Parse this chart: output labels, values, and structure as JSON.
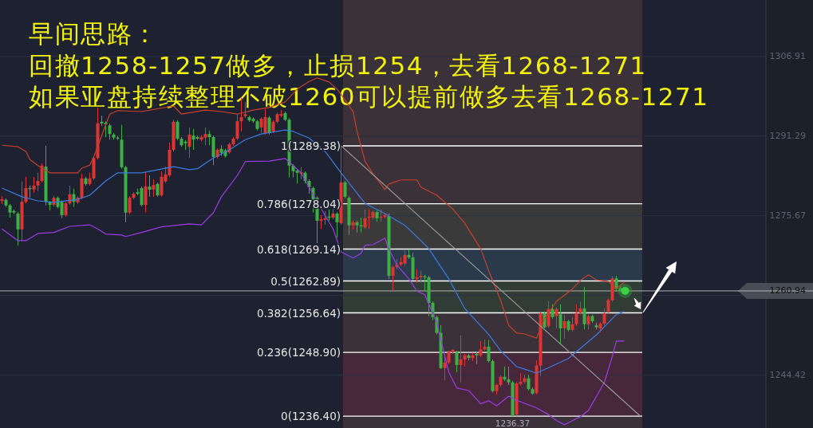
{
  "chart_data": {
    "type": "candlestick",
    "title": "早间思路：",
    "annotations": [
      "回撤1258-1257做多，止损1254，去看1268-1271",
      "如果亚盘持续整理不破1260可以提前做多去看1268-1271",
      {
        "text": "1236.37",
        "y": 1236.37
      }
    ],
    "categories": [
      null,
      null,
      null,
      null,
      null,
      null,
      null,
      null,
      null,
      null,
      null,
      null,
      null,
      null,
      null,
      null,
      null,
      null,
      null,
      null,
      null,
      null,
      null,
      null,
      null,
      null,
      null,
      null,
      null,
      null,
      null,
      null,
      null,
      null,
      null,
      null,
      null,
      null,
      null,
      null,
      null,
      null,
      null,
      null,
      null,
      null,
      null,
      null,
      null,
      null,
      null,
      null,
      null,
      null,
      null,
      null,
      null,
      null,
      null,
      null,
      null,
      null,
      null,
      null,
      null,
      null,
      null,
      null,
      null,
      null,
      null,
      null,
      null,
      null,
      null,
      null,
      null,
      null,
      null,
      null,
      null,
      null,
      null,
      null,
      null,
      null,
      null,
      null,
      null,
      null,
      null,
      null,
      null,
      null,
      null,
      null,
      null,
      null,
      null,
      null,
      null,
      null,
      null,
      null,
      null,
      null,
      null,
      null,
      null,
      null,
      null,
      null,
      null,
      null,
      null,
      null,
      null,
      null,
      null,
      null,
      null,
      null,
      null,
      null,
      null,
      null,
      null,
      null,
      null,
      null,
      null,
      null,
      null,
      null,
      null,
      null,
      null,
      null,
      null,
      null,
      null,
      null,
      null,
      null,
      null,
      null,
      null,
      null,
      null,
      null,
      null,
      null,
      null,
      null,
      null,
      null,
      null,
      null,
      null,
      null,
      null,
      null,
      null,
      null,
      null,
      null,
      null,
      null,
      null,
      null,
      null,
      null,
      null,
      null,
      null,
      null,
      null,
      null,
      null,
      null,
      null,
      null,
      null,
      null,
      null,
      null,
      null,
      null,
      null,
      null,
      null,
      null
    ],
    "ohlc": [
      [
        1278.6,
        1279.5,
        1278.0,
        1278.9
      ],
      [
        1278.8,
        1279.1,
        1277.4,
        1277.7
      ],
      [
        1277.7,
        1278.0,
        1275.3,
        1276.3
      ],
      [
        1276.6,
        1276.9,
        1276.0,
        1276.3
      ],
      [
        1276.1,
        1276.4,
        1269.8,
        1273.0
      ],
      [
        1273.0,
        1282.4,
        1270.8,
        1278.4
      ],
      [
        1278.4,
        1283.3,
        1278.1,
        1281.1
      ],
      [
        1281.1,
        1281.6,
        1279.2,
        1280.9
      ],
      [
        1280.8,
        1283.3,
        1280.2,
        1281.6
      ],
      [
        1281.6,
        1284.1,
        1280.5,
        1282.5
      ],
      [
        1282.5,
        1286.0,
        1282.2,
        1285.5
      ],
      [
        1285.3,
        1289.4,
        1277.7,
        1278.4
      ],
      [
        1278.3,
        1278.6,
        1276.7,
        1277.8
      ],
      [
        1277.8,
        1279.6,
        1277.5,
        1279.2
      ],
      [
        1279.2,
        1279.5,
        1277.1,
        1277.4
      ],
      [
        1278.4,
        1278.7,
        1275.2,
        1275.8
      ],
      [
        1275.8,
        1278.4,
        1275.5,
        1278.1
      ],
      [
        1278.1,
        1281.6,
        1277.8,
        1279.9
      ],
      [
        1279.9,
        1281.0,
        1277.4,
        1278.4
      ],
      [
        1278.3,
        1279.5,
        1278.0,
        1279.2
      ],
      [
        1279.2,
        1283.9,
        1278.9,
        1283.0
      ],
      [
        1283.0,
        1283.3,
        1281.6,
        1281.9
      ],
      [
        1281.9,
        1284.1,
        1281.6,
        1283.0
      ],
      [
        1283.0,
        1287.3,
        1282.7,
        1287.0
      ],
      [
        1287.0,
        1296.9,
        1286.7,
        1293.8
      ],
      [
        1294.1,
        1295.3,
        1293.3,
        1293.8
      ],
      [
        1293.9,
        1294.2,
        1291.1,
        1293.6
      ],
      [
        1293.4,
        1293.7,
        1290.6,
        1291.7
      ],
      [
        1291.6,
        1291.9,
        1290.6,
        1291.0
      ],
      [
        1291.0,
        1291.3,
        1290.5,
        1290.8
      ],
      [
        1290.6,
        1293.5,
        1284.9,
        1285.2
      ],
      [
        1285.2,
        1285.5,
        1274.4,
        1276.3
      ],
      [
        1276.3,
        1279.5,
        1276.0,
        1279.2
      ],
      [
        1279.2,
        1280.3,
        1278.9,
        1280.0
      ],
      [
        1280.3,
        1281.0,
        1279.7,
        1280.0
      ],
      [
        1281.1,
        1281.4,
        1277.5,
        1277.8
      ],
      [
        1277.8,
        1284.2,
        1276.3,
        1281.4
      ],
      [
        1281.4,
        1283.6,
        1279.4,
        1280.8
      ],
      [
        1280.8,
        1282.8,
        1279.4,
        1281.7
      ],
      [
        1281.9,
        1282.2,
        1279.4,
        1279.7
      ],
      [
        1279.7,
        1284.4,
        1279.4,
        1283.3
      ],
      [
        1282.4,
        1285.3,
        1282.1,
        1283.8
      ],
      [
        1283.6,
        1290.0,
        1283.3,
        1288.6
      ],
      [
        1288.6,
        1294.5,
        1288.3,
        1294.1
      ],
      [
        1294.1,
        1294.4,
        1290.5,
        1290.8
      ],
      [
        1290.8,
        1291.1,
        1289.2,
        1289.5
      ],
      [
        1290.2,
        1290.5,
        1288.6,
        1289.9
      ],
      [
        1289.2,
        1293.0,
        1287.0,
        1291.6
      ],
      [
        1291.4,
        1292.7,
        1288.6,
        1290.6
      ],
      [
        1291.1,
        1291.4,
        1290.5,
        1290.8
      ],
      [
        1290.6,
        1291.4,
        1290.3,
        1291.1
      ],
      [
        1291.0,
        1293.0,
        1289.5,
        1291.7
      ],
      [
        1291.7,
        1292.4,
        1289.5,
        1291.1
      ],
      [
        1291.1,
        1291.4,
        1285.6,
        1287.2
      ],
      [
        1287.2,
        1288.9,
        1286.9,
        1288.6
      ],
      [
        1288.8,
        1289.5,
        1287.4,
        1288.0
      ],
      [
        1288.5,
        1288.8,
        1287.1,
        1287.4
      ],
      [
        1288.1,
        1290.0,
        1287.8,
        1289.7
      ],
      [
        1289.7,
        1291.1,
        1289.4,
        1290.8
      ],
      [
        1290.8,
        1295.6,
        1290.5,
        1294.2
      ],
      [
        1294.2,
        1298.8,
        1292.2,
        1295.0
      ],
      [
        1295.2,
        1298.0,
        1294.9,
        1295.6
      ],
      [
        1295.0,
        1295.3,
        1294.1,
        1294.4
      ],
      [
        1294.7,
        1295.0,
        1293.9,
        1294.2
      ],
      [
        1294.2,
        1294.5,
        1292.4,
        1292.7
      ],
      [
        1293.0,
        1295.0,
        1291.9,
        1294.7
      ],
      [
        1291.9,
        1296.6,
        1291.6,
        1295.0
      ],
      [
        1294.9,
        1295.2,
        1291.6,
        1291.9
      ],
      [
        1292.2,
        1294.4,
        1291.9,
        1294.1
      ],
      [
        1294.1,
        1295.9,
        1293.8,
        1295.6
      ],
      [
        1295.3,
        1296.4,
        1295.0,
        1295.6
      ],
      [
        1295.8,
        1296.1,
        1294.2,
        1294.5
      ],
      [
        1294.5,
        1294.8,
        1283.2,
        1285.5
      ],
      [
        1285.5,
        1285.8,
        1283.2,
        1284.4
      ],
      [
        1284.5,
        1284.8,
        1282.0,
        1284.1
      ],
      [
        1283.9,
        1285.2,
        1282.8,
        1284.2
      ],
      [
        1284.1,
        1284.4,
        1282.0,
        1282.5
      ],
      [
        1282.5,
        1282.8,
        1280.0,
        1281.3
      ],
      [
        1281.1,
        1281.4,
        1276.3,
        1278.9
      ],
      [
        1279.2,
        1279.5,
        1270.3,
        1274.7
      ],
      [
        1274.7,
        1275.8,
        1273.1,
        1275.0
      ],
      [
        1274.9,
        1276.6,
        1273.9,
        1275.2
      ],
      [
        1275.5,
        1276.9,
        1274.7,
        1275.3
      ],
      [
        1275.3,
        1277.0,
        1275.0,
        1276.1
      ],
      [
        1276.1,
        1276.4,
        1271.4,
        1274.4
      ],
      [
        1274.2,
        1289.4,
        1273.9,
        1282.2
      ],
      [
        1282.2,
        1282.5,
        1279.1,
        1279.4
      ],
      [
        1279.2,
        1279.5,
        1271.9,
        1273.8
      ],
      [
        1273.8,
        1274.7,
        1273.0,
        1274.4
      ],
      [
        1274.4,
        1274.7,
        1272.4,
        1273.8
      ],
      [
        1273.8,
        1275.3,
        1272.4,
        1273.6
      ],
      [
        1273.4,
        1276.9,
        1273.1,
        1275.2
      ],
      [
        1275.3,
        1276.9,
        1273.1,
        1275.5
      ],
      [
        1275.3,
        1276.7,
        1275.0,
        1276.4
      ],
      [
        1276.4,
        1276.7,
        1274.5,
        1275.2
      ],
      [
        1275.3,
        1276.9,
        1274.5,
        1275.5
      ],
      [
        1275.5,
        1276.1,
        1275.2,
        1275.8
      ],
      [
        1275.6,
        1276.1,
        1263.3,
        1263.9
      ],
      [
        1263.9,
        1265.9,
        1261.0,
        1265.6
      ],
      [
        1265.6,
        1267.2,
        1265.2,
        1266.1
      ],
      [
        1266.1,
        1267.5,
        1265.8,
        1266.6
      ],
      [
        1266.3,
        1269.1,
        1265.9,
        1268.0
      ],
      [
        1268.0,
        1269.1,
        1267.2,
        1267.5
      ],
      [
        1267.5,
        1268.4,
        1263.0,
        1263.3
      ],
      [
        1263.3,
        1265.2,
        1262.5,
        1263.6
      ],
      [
        1263.6,
        1264.9,
        1262.5,
        1263.9
      ],
      [
        1263.8,
        1264.1,
        1261.0,
        1263.6
      ],
      [
        1263.6,
        1263.9,
        1256.0,
        1258.6
      ],
      [
        1258.6,
        1258.9,
        1255.2,
        1255.8
      ],
      [
        1255.8,
        1256.1,
        1252.4,
        1252.7
      ],
      [
        1252.7,
        1254.2,
        1245.6,
        1245.8
      ],
      [
        1245.8,
        1248.0,
        1243.4,
        1246.9
      ],
      [
        1246.9,
        1249.2,
        1246.6,
        1248.9
      ],
      [
        1248.9,
        1249.5,
        1248.6,
        1249.4
      ],
      [
        1248.9,
        1249.2,
        1245.0,
        1246.4
      ],
      [
        1246.4,
        1252.2,
        1243.0,
        1247.5
      ],
      [
        1247.5,
        1248.6,
        1246.1,
        1248.3
      ],
      [
        1248.3,
        1248.6,
        1247.3,
        1247.8
      ],
      [
        1247.8,
        1248.8,
        1247.2,
        1248.3
      ],
      [
        1248.6,
        1248.9,
        1246.6,
        1248.3
      ],
      [
        1248.3,
        1251.1,
        1248.0,
        1249.5
      ],
      [
        1249.5,
        1251.4,
        1249.2,
        1250.0
      ],
      [
        1250.0,
        1251.3,
        1246.9,
        1247.2
      ],
      [
        1247.2,
        1247.5,
        1241.0,
        1241.3
      ],
      [
        1241.3,
        1242.8,
        1240.6,
        1242.5
      ],
      [
        1242.5,
        1244.4,
        1242.2,
        1244.1
      ],
      [
        1244.1,
        1246.1,
        1243.3,
        1243.6
      ],
      [
        1243.6,
        1246.1,
        1242.5,
        1243.0
      ],
      [
        1243.0,
        1243.3,
        1236.37,
        1236.4
      ],
      [
        1236.7,
        1243.1,
        1236.4,
        1242.8
      ],
      [
        1242.7,
        1244.8,
        1242.4,
        1243.1
      ],
      [
        1243.1,
        1244.5,
        1242.8,
        1243.8
      ],
      [
        1243.8,
        1244.5,
        1241.4,
        1241.7
      ],
      [
        1241.7,
        1242.0,
        1240.6,
        1240.8
      ],
      [
        1240.9,
        1247.3,
        1240.6,
        1246.3
      ],
      [
        1246.3,
        1256.9,
        1244.2,
        1256.6
      ],
      [
        1256.6,
        1256.9,
        1253.6,
        1253.8
      ],
      [
        1254.0,
        1258.9,
        1253.7,
        1257.4
      ],
      [
        1257.4,
        1258.3,
        1255.5,
        1255.8
      ],
      [
        1256.0,
        1257.7,
        1253.6,
        1257.4
      ],
      [
        1256.4,
        1258.3,
        1250.5,
        1253.6
      ],
      [
        1253.6,
        1256.3,
        1251.6,
        1255.0
      ],
      [
        1255.0,
        1255.3,
        1253.0,
        1253.3
      ],
      [
        1253.3,
        1255.8,
        1253.0,
        1254.4
      ],
      [
        1254.4,
        1258.3,
        1254.1,
        1256.6
      ],
      [
        1256.6,
        1258.8,
        1256.3,
        1257.5
      ],
      [
        1257.5,
        1261.7,
        1253.4,
        1254.4
      ],
      [
        1254.4,
        1256.3,
        1253.4,
        1256.0
      ],
      [
        1256.0,
        1256.3,
        1254.7,
        1255.0
      ],
      [
        1254.2,
        1254.7,
        1253.4,
        1253.8
      ],
      [
        1253.6,
        1254.8,
        1252.8,
        1254.5
      ],
      [
        1254.5,
        1257.5,
        1254.2,
        1256.6
      ],
      [
        1256.9,
        1259.4,
        1256.6,
        1259.1
      ],
      [
        1259.1,
        1263.8,
        1258.8,
        1263.4
      ],
      [
        1263.4,
        1263.9,
        1261.0,
        1261.3
      ],
      [
        1261.5,
        1261.9,
        1260.8,
        1260.94
      ],
      null,
      null,
      null,
      null,
      null,
      null,
      null,
      null,
      null,
      null,
      null,
      null,
      null,
      null,
      null,
      null,
      null,
      null,
      null,
      null,
      null,
      null,
      null,
      null,
      null,
      null,
      null,
      null,
      null,
      null,
      null,
      null,
      null,
      null,
      null,
      null
    ],
    "series": [
      {
        "type": "line",
        "color": "#c9402c",
        "values": [
          1289.5,
          null,
          null,
          null,
          1289.2,
          null,
          1288.3,
          1286.7,
          null,
          1285.5,
          null,
          null,
          1284.1,
          null,
          null,
          null,
          null,
          null,
          null,
          1284.1,
          1285.0,
          null,
          1285.6,
          1287.2,
          null,
          1291.4,
          null,
          1295.6,
          null,
          1296.3,
          null,
          null,
          null,
          null,
          null,
          1296.1,
          null,
          null,
          null,
          null,
          null,
          null,
          null,
          1297.2,
          null,
          1295.6,
          null,
          null,
          null,
          null,
          null,
          1296.4,
          null,
          null,
          null,
          1296.1,
          null,
          null,
          null,
          1295.6,
          null,
          null,
          null,
          1296.4,
          null,
          null,
          null,
          1296.9,
          null,
          null,
          null,
          1298.0,
          null,
          null,
          1300.5,
          null,
          null,
          1302.0,
          null,
          1302.7,
          null,
          null,
          1301.9,
          null,
          1300.5,
          null,
          1298.4,
          null,
          1296.1,
          1292.2,
          null,
          1286.4,
          null,
          1283.9,
          null,
          null,
          1280.8,
          1281.9,
          null,
          null,
          1282.7,
          null,
          null,
          null,
          1282.7,
          1281.3,
          null,
          null,
          null,
          1279.7,
          null,
          null,
          null,
          1277.0,
          null,
          null,
          1274.2,
          null,
          null,
          null,
          1269.2,
          null,
          1264.9,
          null,
          null,
          1259.1,
          null,
          1254.2,
          null,
          1252.7,
          null,
          1252.5,
          null,
          null,
          1251.7,
          null,
          1255.5,
          null,
          null,
          1258.9,
          null,
          null,
          null,
          1261.3,
          null,
          1263.0,
          null,
          1264.1,
          null,
          1263.1,
          null,
          null,
          1262.8,
          null,
          1261.4,
          null,
          1262.7,
          null,
          null,
          null,
          null,
          null,
          null,
          null,
          null,
          null,
          null,
          null,
          null,
          null,
          null,
          null,
          null,
          null,
          null,
          null,
          null,
          null,
          null,
          null,
          null,
          null,
          null,
          null,
          null,
          null,
          null,
          null,
          null,
          null,
          null,
          null
        ]
      },
      {
        "type": "line",
        "color": "#3b7be0",
        "values": [
          1281.1,
          null,
          null,
          null,
          null,
          1279.4,
          null,
          null,
          null,
          1278.6,
          null,
          null,
          null,
          1278.3,
          null,
          null,
          null,
          null,
          null,
          1278.9,
          null,
          null,
          1279.7,
          null,
          null,
          null,
          1282.5,
          null,
          null,
          1284.1,
          null,
          null,
          null,
          null,
          null,
          1284.1,
          null,
          null,
          null,
          null,
          null,
          null,
          null,
          1285.3,
          null,
          null,
          null,
          1284.7,
          null,
          1284.9,
          null,
          null,
          null,
          1287.0,
          null,
          null,
          null,
          1288.6,
          null,
          null,
          null,
          1290.6,
          null,
          null,
          null,
          1291.7,
          null,
          null,
          null,
          null,
          null,
          1292.5,
          null,
          1292.2,
          null,
          null,
          null,
          1290.9,
          null,
          null,
          null,
          1288.3,
          null,
          null,
          null,
          1284.1,
          null,
          null,
          null,
          null,
          null,
          1278.1,
          null,
          null,
          null,
          null,
          1276.1,
          null,
          null,
          null,
          null,
          1273.8,
          null,
          null,
          null,
          1270.8,
          null,
          1269.2,
          null,
          null,
          null,
          null,
          1263.3,
          null,
          null,
          null,
          1257.5,
          null,
          null,
          null,
          null,
          null,
          1252.4,
          null,
          null,
          1249.2,
          null,
          null,
          null,
          1246.1,
          null,
          1245.6,
          null,
          null,
          1244.8,
          null,
          null,
          null,
          null,
          1246.6,
          null,
          null,
          1247.7,
          null,
          null,
          1249.7,
          null,
          null,
          null,
          1252.3,
          null,
          null,
          1254.7,
          null,
          1256.3,
          null,
          1256.9,
          null,
          null,
          null,
          null,
          null,
          null,
          null,
          null,
          null,
          null,
          null,
          null,
          null,
          null,
          null,
          null,
          null,
          null,
          null,
          null,
          null,
          null,
          null,
          null,
          null,
          null,
          null,
          null,
          null,
          null,
          null,
          null,
          null,
          null,
          null
        ]
      },
      {
        "type": "line",
        "color": "#9a3de6",
        "values": [
          1273.1,
          null,
          null,
          null,
          1270.8,
          null,
          1270.8,
          null,
          null,
          1272.2,
          null,
          null,
          null,
          1272.4,
          null,
          null,
          null,
          1273.6,
          null,
          null,
          null,
          null,
          1273.9,
          null,
          1273.1,
          null,
          1272.1,
          null,
          null,
          null,
          1271.9,
          1271.6,
          null,
          null,
          null,
          1272.4,
          null,
          null,
          null,
          null,
          1273.5,
          null,
          null,
          null,
          null,
          null,
          null,
          1274.1,
          null,
          null,
          1273.9,
          null,
          null,
          1276.3,
          null,
          1279.4,
          null,
          null,
          null,
          1283.6,
          null,
          1286.3,
          null,
          null,
          null,
          null,
          null,
          1286.4,
          null,
          null,
          null,
          1286.9,
          null,
          null,
          null,
          1284.1,
          null,
          null,
          null,
          1278.4,
          null,
          null,
          null,
          1273.1,
          null,
          1268.6,
          null,
          null,
          1267.4,
          null,
          1268.3,
          1269.9,
          null,
          1270.0,
          null,
          null,
          1271.3,
          1269.1,
          null,
          1266.0,
          null,
          null,
          1263.3,
          null,
          1260.9,
          null,
          1260.2,
          null,
          null,
          1254.7,
          null,
          null,
          1245.0,
          null,
          1241.9,
          null,
          null,
          1241.4,
          null,
          null,
          1238.8,
          null,
          1239.4,
          null,
          1238.4,
          null,
          null,
          1240.3,
          null,
          1239.5,
          null,
          null,
          null,
          null,
          1238.0,
          null,
          null,
          1236.7,
          null,
          1235.5,
          null,
          1234.7,
          null,
          null,
          null,
          1236.3,
          null,
          1237.5,
          null,
          null,
          null,
          1243.0,
          null,
          1248.1,
          1251.1,
          null,
          1251.1,
          null,
          null,
          null,
          null,
          null,
          null,
          null,
          null,
          null,
          null,
          null,
          null,
          null,
          null,
          null,
          null,
          null,
          null,
          null,
          null,
          null,
          null,
          null,
          null,
          null,
          null,
          null,
          null,
          null,
          null,
          null,
          null,
          null,
          null,
          null
        ]
      },
      {
        "type": "line",
        "color": "#9a9a9a",
        "values": [
          null,
          null,
          null,
          null,
          null,
          null,
          null,
          null,
          null,
          null,
          null,
          null,
          null,
          null,
          null,
          null,
          null,
          null,
          null,
          null,
          null,
          null,
          null,
          null,
          null,
          null,
          null,
          null,
          null,
          null,
          null,
          null,
          null,
          null,
          null,
          null,
          null,
          null,
          null,
          null,
          null,
          null,
          null,
          null,
          null,
          null,
          null,
          null,
          null,
          null,
          null,
          null,
          null,
          null,
          null,
          null,
          null,
          null,
          null,
          null,
          null,
          null,
          null,
          null,
          null,
          null,
          null,
          null,
          null,
          null,
          null,
          null,
          null,
          null,
          null,
          null,
          null,
          null,
          null,
          null,
          null,
          null,
          null,
          null,
          null,
          1289.4,
          null,
          null,
          null,
          null,
          null,
          null,
          null,
          null,
          null,
          null,
          null,
          null,
          null,
          null,
          null,
          null,
          null,
          null,
          null,
          null,
          null,
          null,
          null,
          null,
          null,
          null,
          null,
          null,
          null,
          null,
          null,
          null,
          null,
          null,
          null,
          null,
          null,
          null,
          null,
          null,
          null,
          null,
          null,
          null,
          null,
          null,
          null,
          null,
          null,
          null,
          null,
          null,
          null,
          null,
          null,
          null,
          null,
          null,
          null,
          null,
          null,
          null,
          null,
          null,
          null,
          null,
          null,
          null,
          null,
          null,
          null,
          null,
          null,
          null,
          1236.4,
          null,
          null,
          null,
          null,
          null,
          null,
          null,
          null,
          null,
          null,
          null,
          null,
          null,
          null,
          null,
          null,
          null,
          null,
          null,
          null,
          null,
          null,
          null,
          null,
          null,
          null,
          null,
          null,
          null,
          null,
          null
        ]
      }
    ],
    "ylim": [
      1234.06,
      1317.98
    ],
    "yticks": [
      1244.42,
      {
        "value": 1260.05,
        "label": null
      },
      1275.67,
      1291.29,
      1306.91
    ],
    "grid": "y",
    "tick_labels": "y",
    "bands": [
      {
        "axis": "y",
        "from": 1236.4,
        "to": 1248.9,
        "color": "#47283a"
      },
      {
        "axis": "y",
        "from": 1256.64,
        "to": 1262.89,
        "color": "#313c36"
      },
      {
        "axis": "y",
        "from": 1262.89,
        "to": 1269.14,
        "color": "#2a3a4b"
      },
      {
        "axis": "y",
        "from": 1269.14,
        "to": 1278.04,
        "color": "#3a3a3b"
      }
    ],
    "ref_lines": [
      {
        "axis": "y",
        "value": 1289.38,
        "label": "1(1289.38)"
      },
      {
        "axis": "y",
        "value": 1278.04,
        "label": "0.786(1278.04)"
      },
      {
        "axis": "y",
        "value": 1269.14,
        "label": "0.618(1269.14)"
      },
      {
        "axis": "y",
        "value": 1262.89,
        "label": "0.5(1262.89)"
      },
      {
        "axis": "y",
        "value": 1256.64,
        "label": "0.382(1256.64)"
      },
      {
        "axis": "y",
        "value": 1248.9,
        "label": "0.236(1248.90)"
      },
      {
        "axis": "y",
        "value": 1236.4,
        "label": "0(1236.40)"
      },
      {
        "axis": "y",
        "value": 1260.94,
        "label": "1260.94",
        "color": "#b4b4b4"
      }
    ]
  }
}
